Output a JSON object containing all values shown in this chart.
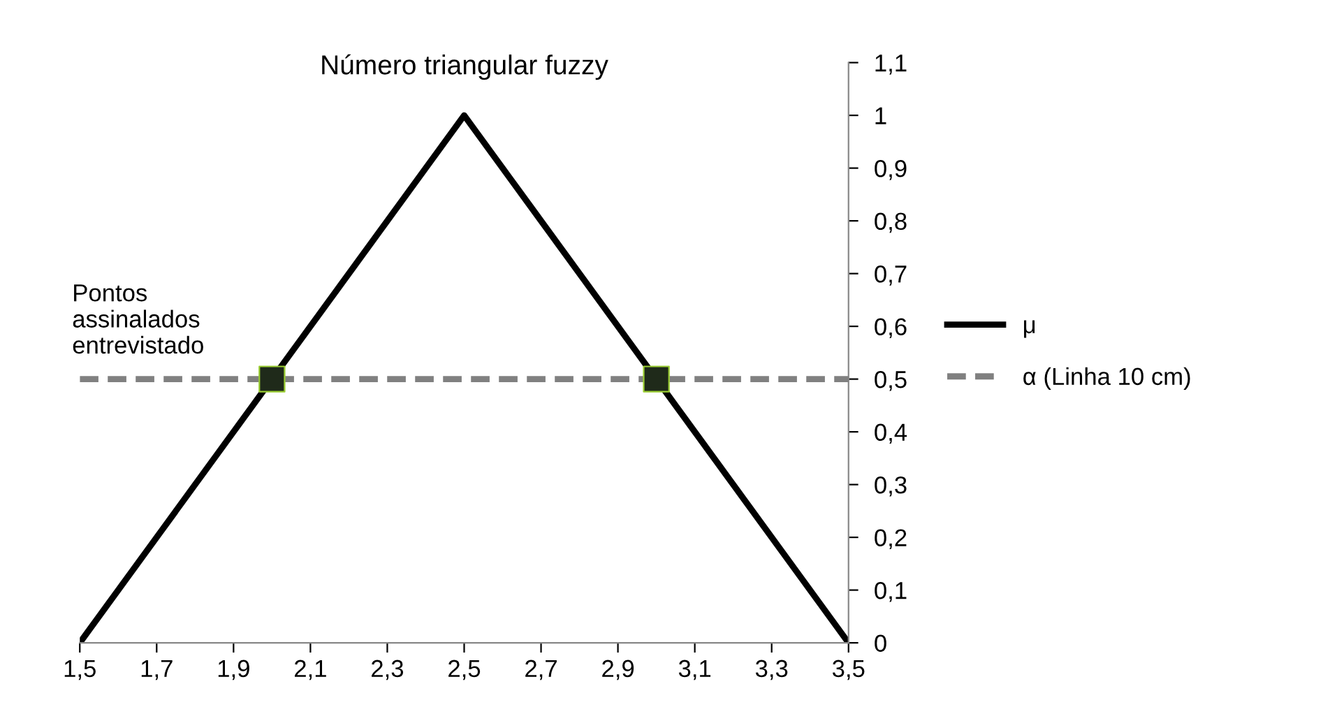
{
  "chart_data": {
    "type": "line",
    "title": "Número triangular fuzzy",
    "series": [
      {
        "name": "μ",
        "color": "#000000",
        "x": [
          1.5,
          2.5,
          3.5
        ],
        "values": [
          0,
          1,
          0
        ],
        "line_style": "solid",
        "marker": "none"
      },
      {
        "name": "α (Linha 10 cm)",
        "color": "#808080",
        "x": [
          1.5,
          3.5
        ],
        "values": [
          0.5,
          0.5
        ],
        "line_style": "dashed",
        "marker": "none"
      },
      {
        "type": "scatter",
        "color": "#1f2a1a",
        "x": [
          2,
          3
        ],
        "values": [
          0.5,
          0.5
        ],
        "marker": "square"
      }
    ],
    "annotations": [
      "Pontos\nassinalados\nentrevistado"
    ],
    "xlim": [
      1.5,
      3.5
    ],
    "xticks": [
      {
        "value": 1.5,
        "label": "1,5"
      },
      {
        "value": 1.7,
        "label": "1,7"
      },
      {
        "value": 1.9,
        "label": "1,9"
      },
      {
        "value": 2.1,
        "label": "2,1"
      },
      {
        "value": 2.3,
        "label": "2,3"
      },
      {
        "value": 2.5,
        "label": "2,5"
      },
      {
        "value": 2.7,
        "label": "2,7"
      },
      {
        "value": 2.9,
        "label": "2,9"
      },
      {
        "value": 3.1,
        "label": "3,1"
      },
      {
        "value": 3.3,
        "label": "3,3"
      },
      {
        "value": 3.5,
        "label": "3,5"
      }
    ],
    "ylim": [
      0,
      1.1
    ],
    "yticks": [
      0,
      {
        "value": 0.1,
        "label": "0,1"
      },
      {
        "value": 0.2,
        "label": "0,2"
      },
      {
        "value": 0.3,
        "label": "0,3"
      },
      {
        "value": 0.4,
        "label": "0,4"
      },
      {
        "value": 0.5,
        "label": "0,5"
      },
      {
        "value": 0.6,
        "label": "0,6"
      },
      {
        "value": 0.7,
        "label": "0,7"
      },
      {
        "value": 0.8,
        "label": "0,8"
      },
      {
        "value": 0.9,
        "label": "0,9"
      },
      1,
      {
        "value": 1.1,
        "label": "1,1"
      }
    ],
    "grid": false,
    "legend": "right"
  }
}
